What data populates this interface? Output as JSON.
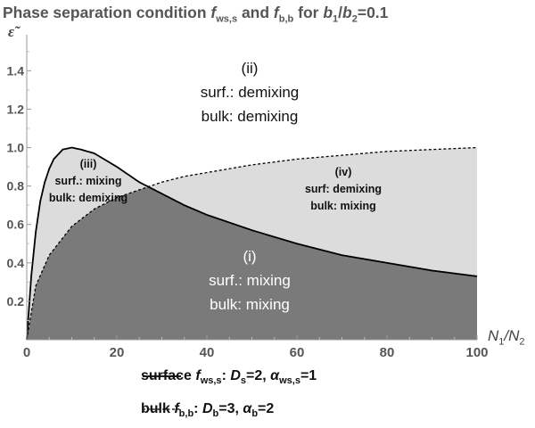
{
  "chart_data": {
    "type": "area",
    "title": "Phase separation condition f_ws,s and f_b,b for b1/b2=0.1",
    "xlabel": "N1/N2",
    "ylabel": "ε̃",
    "xlim": [
      0,
      100
    ],
    "ylim": [
      0,
      1.55
    ],
    "x_ticks": [
      "0",
      "20",
      "40",
      "60",
      "80",
      "100"
    ],
    "y_ticks": [
      "0.2",
      "0.4",
      "0.6",
      "0.8",
      "1.0",
      "1.2",
      "1.4"
    ],
    "series": [
      {
        "name": "surface f_ws,s: D_s=2, α_ws,s=1",
        "style": "solid",
        "x": [
          0,
          1,
          2,
          3,
          4,
          5,
          6,
          8,
          10,
          12,
          15,
          20,
          25,
          30,
          35,
          40,
          50,
          60,
          70,
          80,
          90,
          100
        ],
        "y": [
          0.0,
          0.33,
          0.56,
          0.72,
          0.82,
          0.89,
          0.94,
          0.99,
          1.0,
          0.99,
          0.97,
          0.9,
          0.82,
          0.76,
          0.7,
          0.65,
          0.57,
          0.5,
          0.44,
          0.4,
          0.36,
          0.33
        ]
      },
      {
        "name": "bulk f_b,b: D_b=3, α_b=2",
        "style": "dashed",
        "x": [
          0,
          2,
          5,
          10,
          15,
          20,
          25,
          30,
          35,
          40,
          50,
          60,
          70,
          80,
          90,
          100
        ],
        "y": [
          0.0,
          0.28,
          0.44,
          0.59,
          0.68,
          0.74,
          0.78,
          0.82,
          0.85,
          0.87,
          0.91,
          0.94,
          0.96,
          0.98,
          0.99,
          1.0
        ]
      }
    ],
    "regions": [
      {
        "label": "(i)",
        "lines": [
          "surf.: mixing",
          "bulk: mixing"
        ],
        "fill": "#7a7a7a",
        "text_color": "#ffffff"
      },
      {
        "label": "(ii)",
        "lines": [
          "surf.: demixing",
          "bulk: demixing"
        ],
        "fill": "#ffffff",
        "text_color": "#111111"
      },
      {
        "label": "(iii)",
        "lines": [
          "surf.: mixing",
          "bulk: demixing"
        ],
        "fill": "#dcdcdc",
        "text_color": "#111111"
      },
      {
        "label": "(iv)",
        "lines": [
          "surf: demixing",
          "bulk: mixing"
        ],
        "fill": "#dcdcdc",
        "text_color": "#111111"
      }
    ],
    "legend_placement": "bottom",
    "grid": false
  },
  "title": {
    "pre": "Phase separation condition ",
    "f1": "f",
    "f1_sub": "ws,s",
    "mid": " and ",
    "f2": "f",
    "f2_sub": "b,b",
    "post_pre": " for ",
    "b1": "b",
    "b1_sub": "1",
    "slash": "/",
    "b2": "b",
    "b2_sub": "2",
    "post": "=0.1"
  },
  "axis": {
    "y_symbol": "ε̃",
    "x_n1": "N",
    "x_n1_sub": "1",
    "x_slash": "/",
    "x_n2": "N",
    "x_n2_sub": "2"
  },
  "legend": {
    "surface": {
      "pre": "surface ",
      "f": "f",
      "f_sub": "ws,s",
      "colon": ": ",
      "d": "D",
      "d_sub": "s",
      "d_val": "=2, ",
      "alpha": "α",
      "alpha_sub": "ws,s",
      "alpha_val": "=1"
    },
    "bulk": {
      "pre": "bulk ",
      "f": "f",
      "f_sub": "b,b",
      "colon": ": ",
      "d": "D",
      "d_sub": "b",
      "d_val": "=3, ",
      "alpha": "α",
      "alpha_sub": "b",
      "alpha_val": "=2"
    }
  }
}
